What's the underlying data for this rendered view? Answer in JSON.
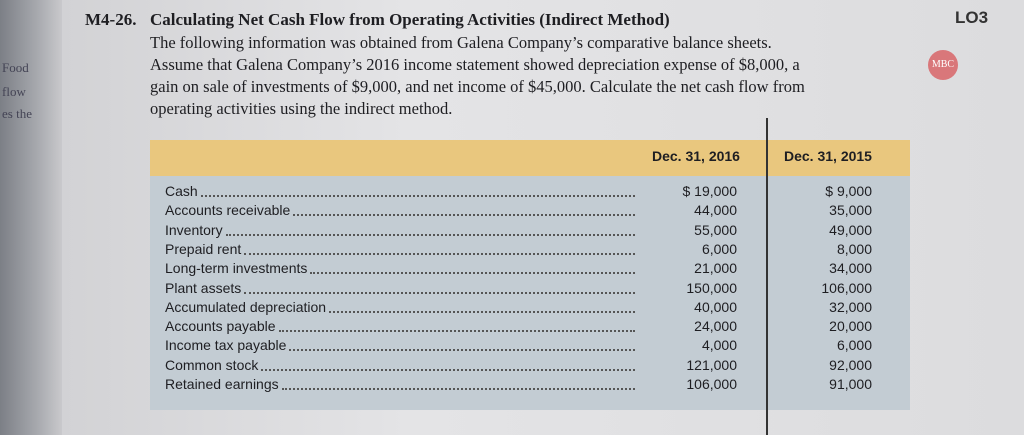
{
  "margin_fragments": [
    "Food",
    "flow",
    "es the"
  ],
  "problem": {
    "number": "M4-26.",
    "title": "Calculating Net Cash Flow from Operating Activities (Indirect Method)",
    "body_lines": [
      "The following information was obtained from Galena Company’s comparative balance sheets.",
      "Assume that Galena Company’s 2016 income statement showed depreciation expense of $8,000, a",
      "gain on sale of investments of $9,000, and net income of $45,000. Calculate the net cash flow from",
      "operating activities using the indirect method."
    ],
    "objective": "LO3",
    "badge": "MBC"
  },
  "table": {
    "columns": [
      "Dec. 31, 2016",
      "Dec. 31, 2015"
    ],
    "rows": [
      [
        "Cash",
        "$ 19,000",
        "$ 9,000"
      ],
      [
        "Accounts receivable",
        "44,000",
        "35,000"
      ],
      [
        "Inventory",
        "55,000",
        "49,000"
      ],
      [
        "Prepaid rent",
        "6,000",
        "8,000"
      ],
      [
        "Long-term investments",
        "21,000",
        "34,000"
      ],
      [
        "Plant assets",
        "150,000",
        "106,000"
      ],
      [
        "Accumulated depreciation",
        "40,000",
        "32,000"
      ],
      [
        "Accounts payable",
        "24,000",
        "20,000"
      ],
      [
        "Income tax payable",
        "4,000",
        "6,000"
      ],
      [
        "Common stock",
        "121,000",
        "92,000"
      ],
      [
        "Retained earnings",
        "106,000",
        "91,000"
      ]
    ]
  }
}
